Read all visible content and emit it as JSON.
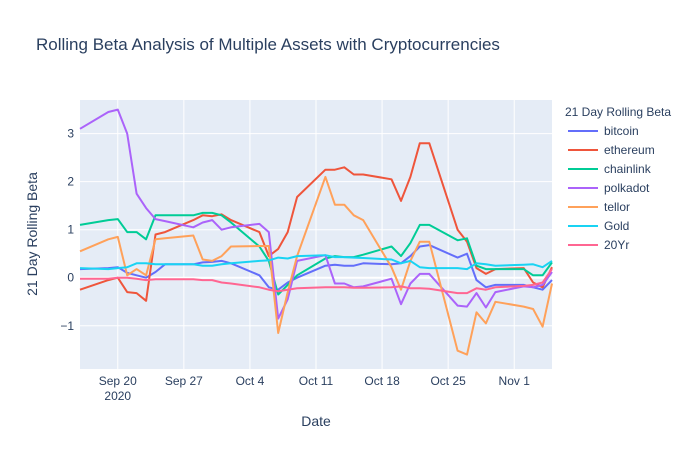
{
  "chart_data": {
    "type": "line",
    "title": "Rolling Beta Analysis of Multiple Assets with Cryptocurrencies",
    "xlabel": "Date",
    "ylabel": "21 Day Rolling Beta",
    "legend_title": "21 Day Rolling Beta",
    "legend_position": "right",
    "grid": true,
    "x_range": [
      "2020-09-16",
      "2020-11-05"
    ],
    "ylim": [
      -1.9,
      3.7
    ],
    "x_ticks": [
      {
        "date": "2020-09-20",
        "label": "Sep 20",
        "sublabel": "2020"
      },
      {
        "date": "2020-09-27",
        "label": "Sep 27",
        "sublabel": ""
      },
      {
        "date": "2020-10-04",
        "label": "Oct 4",
        "sublabel": ""
      },
      {
        "date": "2020-10-11",
        "label": "Oct 11",
        "sublabel": ""
      },
      {
        "date": "2020-10-18",
        "label": "Oct 18",
        "sublabel": ""
      },
      {
        "date": "2020-10-25",
        "label": "Oct 25",
        "sublabel": ""
      },
      {
        "date": "2020-11-01",
        "label": "Nov 1",
        "sublabel": ""
      }
    ],
    "y_ticks": [
      {
        "value": -1,
        "label": "−1"
      },
      {
        "value": 0,
        "label": "0"
      },
      {
        "value": 1,
        "label": "1"
      },
      {
        "value": 2,
        "label": "2"
      },
      {
        "value": 3,
        "label": "3"
      }
    ],
    "x": [
      "2020-09-16",
      "2020-09-19",
      "2020-09-20",
      "2020-09-21",
      "2020-09-22",
      "2020-09-23",
      "2020-09-24",
      "2020-09-25",
      "2020-09-28",
      "2020-09-29",
      "2020-09-30",
      "2020-10-01",
      "2020-10-02",
      "2020-10-05",
      "2020-10-06",
      "2020-10-07",
      "2020-10-08",
      "2020-10-09",
      "2020-10-12",
      "2020-10-13",
      "2020-10-14",
      "2020-10-15",
      "2020-10-16",
      "2020-10-19",
      "2020-10-20",
      "2020-10-21",
      "2020-10-22",
      "2020-10-23",
      "2020-10-26",
      "2020-10-27",
      "2020-10-28",
      "2020-10-29",
      "2020-10-30",
      "2020-11-02",
      "2020-11-03",
      "2020-11-04",
      "2020-11-05"
    ],
    "series": [
      {
        "name": "bitcoin",
        "color": "#636efa",
        "values": [
          0.18,
          0.2,
          0.22,
          0.1,
          0.05,
          0.0,
          0.12,
          0.28,
          0.28,
          0.32,
          0.33,
          0.35,
          0.3,
          0.05,
          -0.2,
          -0.25,
          -0.1,
          0.0,
          0.25,
          0.27,
          0.25,
          0.25,
          0.3,
          0.28,
          0.3,
          0.45,
          0.65,
          0.68,
          0.42,
          0.5,
          -0.05,
          -0.2,
          -0.15,
          -0.15,
          -0.2,
          -0.25,
          -0.05
        ]
      },
      {
        "name": "ethereum",
        "color": "#EF553B",
        "values": [
          -0.25,
          -0.05,
          0.0,
          -0.3,
          -0.32,
          -0.48,
          0.9,
          0.95,
          1.2,
          1.3,
          1.28,
          1.32,
          1.2,
          0.95,
          0.45,
          0.6,
          0.95,
          1.68,
          2.25,
          2.25,
          2.3,
          2.15,
          2.15,
          2.05,
          1.6,
          2.1,
          2.8,
          2.8,
          1.0,
          0.75,
          0.2,
          0.08,
          0.18,
          0.2,
          -0.1,
          -0.2,
          0.22
        ]
      },
      {
        "name": "chainlink",
        "color": "#00cc96",
        "values": [
          1.1,
          1.2,
          1.22,
          0.95,
          0.95,
          0.8,
          1.3,
          1.3,
          1.3,
          1.35,
          1.35,
          1.3,
          1.15,
          0.65,
          0.35,
          -0.35,
          -0.15,
          0.05,
          0.4,
          0.45,
          0.43,
          0.43,
          0.48,
          0.65,
          0.45,
          0.72,
          1.1,
          1.1,
          0.78,
          0.82,
          0.25,
          0.18,
          0.18,
          0.18,
          0.05,
          0.05,
          0.32
        ]
      },
      {
        "name": "polkadot",
        "color": "#ab63fa",
        "values": [
          3.1,
          3.45,
          3.5,
          3.0,
          1.75,
          1.45,
          1.22,
          1.18,
          1.05,
          1.15,
          1.2,
          1.0,
          1.05,
          1.12,
          0.95,
          -0.85,
          -0.45,
          0.35,
          0.47,
          -0.12,
          -0.12,
          -0.2,
          -0.18,
          -0.02,
          -0.55,
          -0.12,
          0.08,
          0.08,
          -0.58,
          -0.6,
          -0.32,
          -0.62,
          -0.3,
          -0.18,
          -0.2,
          -0.15,
          0.12
        ]
      },
      {
        "name": "tellor",
        "color": "#FFA15A",
        "values": [
          0.55,
          0.8,
          0.85,
          0.05,
          0.18,
          0.05,
          0.8,
          0.82,
          0.88,
          0.38,
          0.35,
          0.45,
          0.65,
          0.66,
          0.66,
          -1.15,
          -0.3,
          0.45,
          2.1,
          1.52,
          1.52,
          1.3,
          1.2,
          0.22,
          -0.25,
          0.35,
          0.75,
          0.75,
          -1.52,
          -1.6,
          -0.72,
          -0.95,
          -0.5,
          -0.6,
          -0.65,
          -1.02,
          -0.12
        ]
      },
      {
        "name": "Gold",
        "color": "#19d3f3",
        "values": [
          0.2,
          0.18,
          0.2,
          0.22,
          0.3,
          0.3,
          0.28,
          0.28,
          0.28,
          0.25,
          0.25,
          0.28,
          0.3,
          0.35,
          0.36,
          0.42,
          0.4,
          0.45,
          0.47,
          0.43,
          0.43,
          0.42,
          0.41,
          0.38,
          0.3,
          0.35,
          0.22,
          0.2,
          0.2,
          0.18,
          0.3,
          0.28,
          0.25,
          0.27,
          0.28,
          0.22,
          0.35
        ]
      },
      {
        "name": "20Yr",
        "color": "#FF6692",
        "values": [
          -0.02,
          -0.02,
          0.0,
          0.0,
          -0.02,
          -0.05,
          -0.03,
          -0.03,
          -0.03,
          -0.05,
          -0.05,
          -0.1,
          -0.12,
          -0.2,
          -0.25,
          -0.28,
          -0.25,
          -0.22,
          -0.2,
          -0.2,
          -0.2,
          -0.21,
          -0.21,
          -0.2,
          -0.18,
          -0.22,
          -0.22,
          -0.23,
          -0.32,
          -0.32,
          -0.22,
          -0.25,
          -0.2,
          -0.17,
          -0.15,
          -0.1,
          0.18
        ]
      }
    ]
  }
}
